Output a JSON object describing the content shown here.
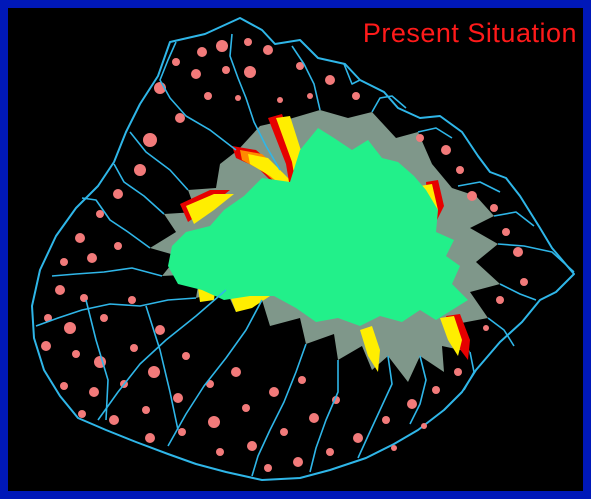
{
  "map": {
    "title": "Present Situation"
  },
  "colors": {
    "frame_border": "#0018b8",
    "background": "#000000",
    "title_text": "#ff1a1a",
    "forest_core": "#22f08a",
    "forest_degraded": "#7f978a",
    "forest_edge_yellow": "#ffee00",
    "forest_edge_orange": "#ff8a00",
    "forest_edge_red": "#e60000",
    "patches": "#f27a7a",
    "rivers": "#2fb6e8"
  },
  "legend": []
}
